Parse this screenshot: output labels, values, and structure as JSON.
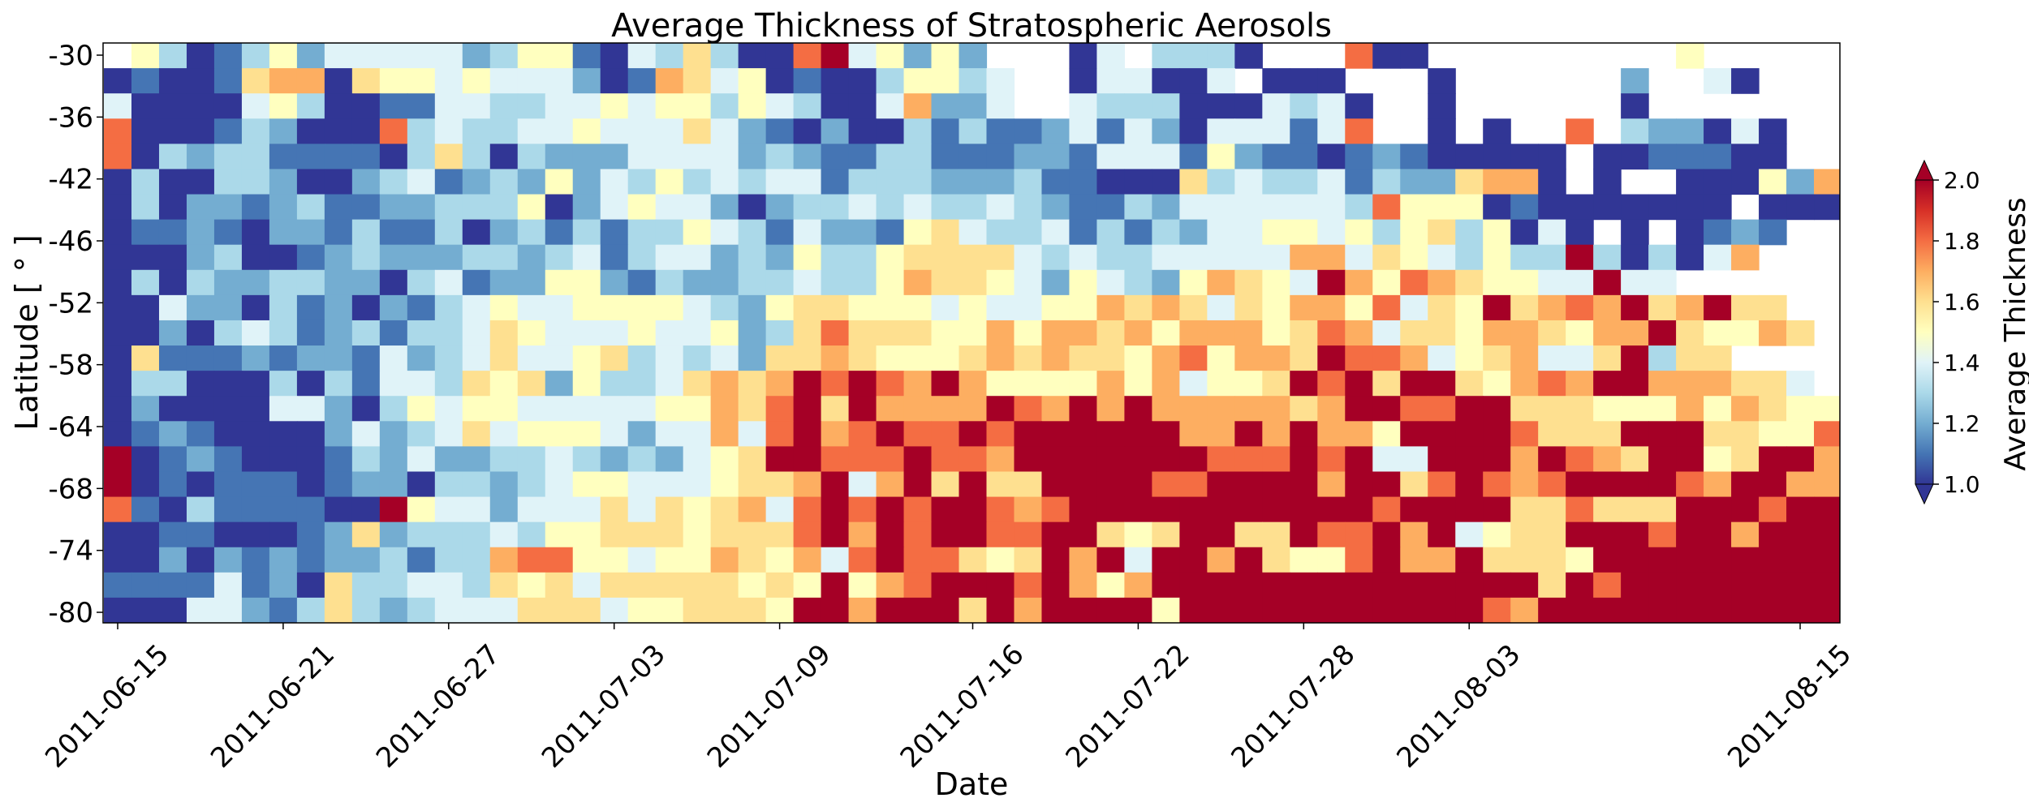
{
  "chart_data": {
    "type": "heatmap",
    "title": "Average Thickness of Stratospheric Aerosols",
    "xlabel": "Date",
    "ylabel": "Latitude [$^\\circ$]",
    "ylabel_text": "Latitude [ ° ]",
    "x_start_date": "2011-06-15",
    "x_end_date": "2011-08-16",
    "x_ticks": [
      "2011-06-15",
      "2011-06-21",
      "2011-06-27",
      "2011-07-03",
      "2011-07-09",
      "2011-07-16",
      "2011-07-22",
      "2011-07-28",
      "2011-08-03",
      "2011-08-15"
    ],
    "y_range": [
      -80.5,
      -30
    ],
    "y_ticks": [
      "-30",
      "-36",
      "-42",
      "-46",
      "-52",
      "-58",
      "-64",
      "-68",
      "-74",
      "-80"
    ],
    "colorbar": {
      "label": "Average Thickness",
      "min": 1.0,
      "max": 2.0,
      "ticks": [
        "1.0",
        "1.2",
        "1.4",
        "1.6",
        "1.8",
        "2.0"
      ],
      "colormap": "RdYlBu_r"
    },
    "value_legend": {
      "0": null,
      "1": 1.0,
      "2": 1.1,
      "3": 1.2,
      "4": 1.3,
      "5": 1.4,
      "6": 1.5,
      "7": 1.6,
      "8": 1.7,
      "9": 1.8,
      "A": 2.0
    },
    "rows_north_to_south": [
      "06412463555553466215474119A5636300015044410009110000000006000000000001001",
      "12112788176656555312875612114664500155115011100010000003005100000000000001",
      "51111564112255445565664654115833500544411154510010000001000000000001110000",
      "91112431119454455655575321311424223525315552590010100904331510000000000010",
      "91434422221474143335555343224422233255526322123211111011222110000000000000",
      "14114431134523436354645455244433342211174544524337881010011163810000000000",
      "14133234223344461356553134454544543224355555549666121111111011100010000000",
      "12232133242241342424465425332675445242435566564674615101012320000000000001",
      "11134112343334434524553436446777754544555558857654644A41415800000000000000",
      "14143344331452336632433445446877653654368765A869876655A5500000000001000000",
      "11533142313245655666654367766656556687875768869576A7898A78A770000000010000",
      "11314542342445765556556347977766868878688867985776887688A76687000000000000",
      "17222323325345755674545377876667878776896887A9985678557A4770000000000000000",
      "1441114142554767364457878A9A98A866668685667A9A7AA76898AA8887750000000000000",
      "1311115531465665555566879A7A8888A98A8A8888878AA99AA7776668687660000400000000",
      "1232111135345756665355859A89A99A9AAAAAA88A8A886AAAA9777AAA77669AA70000000000",
      "A12321112435334454343567AA999A998AAAAAAA999A9A55AAA8A987AA67AA8AA51000000000",
      "A1212221233144345665556778A58A7A77AAAA99AAAA8AA79A989AAAA98AA888887008000000",
      "9214222211A655355575767859A9A9AA989AAAAAAAAAAA9AAAA779777AAA9AA9AAA8000000",
      "11221112373444546677767779A8A9AA99AA767AA77A99A8A5677AAA9AA8AAAAAAA8700000000",
      "1131323233424489966566876859A99767A8A5AA8A7669A88A7776AAAAAAAAAAAA8A7000000",
      "22225231744554767577777676A689AAA9A868AAAAAAAAAAAAAA7A9AAAAAAAAAAAA00000000",
      "1115532474345557775667776AA8AAA7A8AAAA6AAAAAAAAAAA98AAAAAAAAAAAAA000000000"
    ]
  }
}
